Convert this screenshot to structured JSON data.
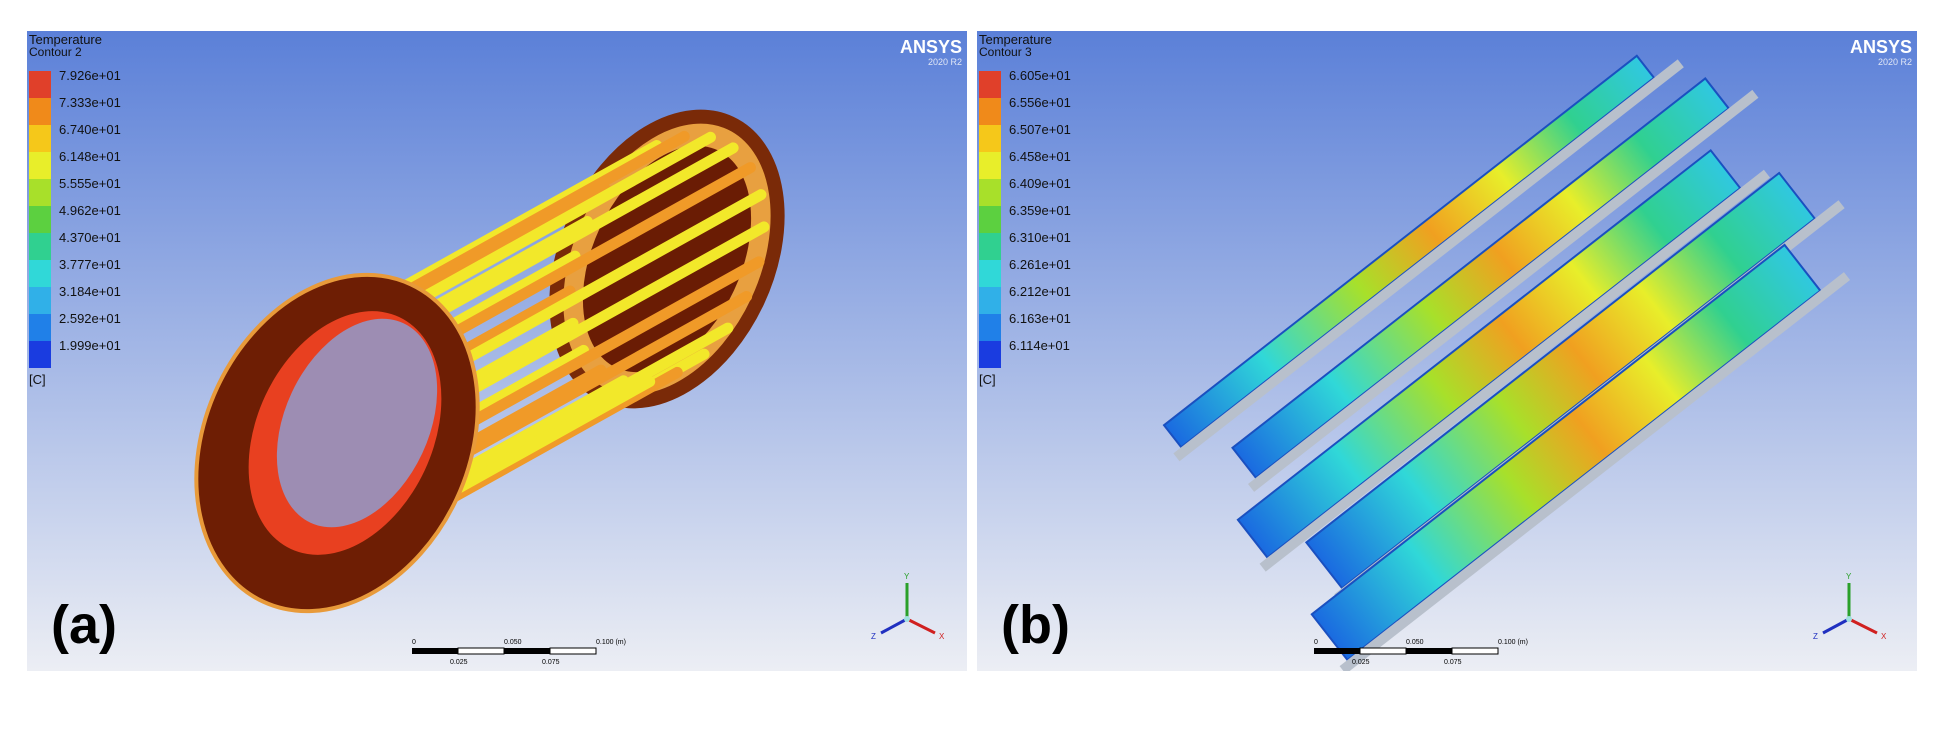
{
  "panels": [
    {
      "label": "(a)",
      "legend": {
        "title": "Temperature",
        "subtitle": "Contour 2",
        "values": [
          "7.926e+01",
          "7.333e+01",
          "6.740e+01",
          "6.148e+01",
          "5.555e+01",
          "4.962e+01",
          "4.370e+01",
          "3.777e+01",
          "3.184e+01",
          "2.592e+01",
          "1.999e+01"
        ],
        "unit": "[C]"
      },
      "logo": {
        "name": "ANSYS",
        "version": "2020 R2"
      },
      "scale_bar": {
        "top": [
          "0",
          "0.050",
          "0.100 (m)"
        ],
        "bottom": [
          "0.025",
          "0.075"
        ]
      },
      "triad": [
        "Y",
        "X",
        "Z"
      ]
    },
    {
      "label": "(b)",
      "legend": {
        "title": "Temperature",
        "subtitle": "Contour 3",
        "values": [
          "6.605e+01",
          "6.556e+01",
          "6.507e+01",
          "6.458e+01",
          "6.409e+01",
          "6.359e+01",
          "6.310e+01",
          "6.261e+01",
          "6.212e+01",
          "6.163e+01",
          "6.114e+01"
        ],
        "unit": "[C]"
      },
      "logo": {
        "name": "ANSYS",
        "version": "2020 R2"
      },
      "scale_bar": {
        "top": [
          "0",
          "0.050",
          "0.100 (m)"
        ],
        "bottom": [
          "0.025",
          "0.075"
        ]
      },
      "triad": [
        "Y",
        "X",
        "Z"
      ]
    }
  ]
}
